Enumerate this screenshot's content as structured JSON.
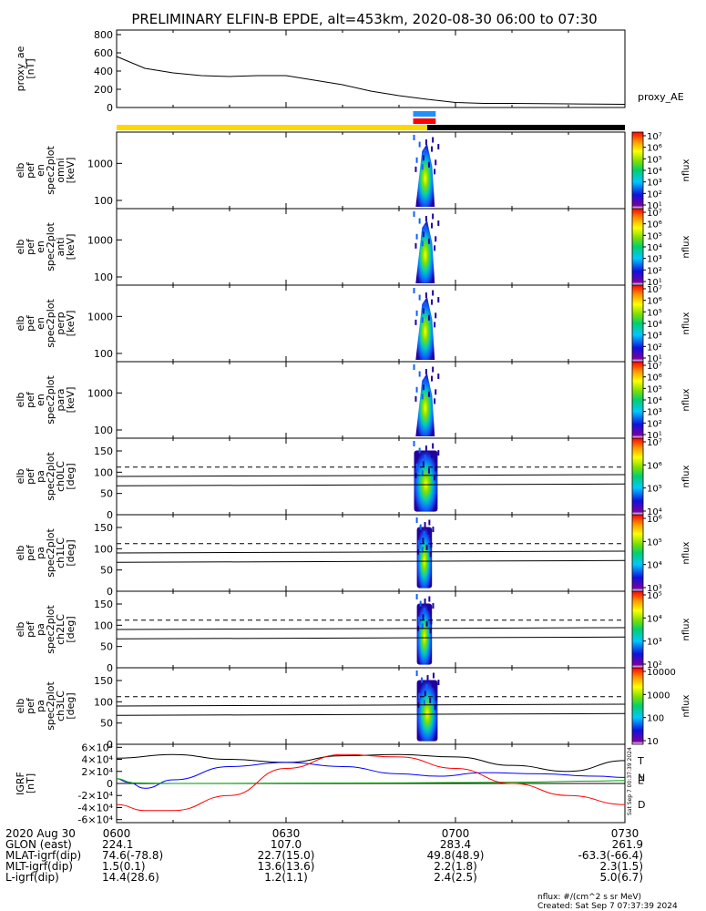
{
  "title": "PRELIMINARY ELFIN-B EPDE, alt=453km, 2020-08-30 06:00 to 07:30",
  "chart_data": [
    {
      "type": "line",
      "name": "proxy_ae",
      "ylabel": [
        "proxy_ae",
        "[nT]"
      ],
      "yticks": [
        0,
        200,
        400,
        600,
        800
      ],
      "ylim": [
        0,
        850
      ],
      "legend": "proxy_AE",
      "x_minutes": [
        0,
        5,
        10,
        15,
        20,
        25,
        30,
        35,
        40,
        45,
        50,
        55,
        60,
        65,
        70,
        75,
        80,
        85,
        90
      ],
      "values": [
        560,
        430,
        380,
        350,
        340,
        350,
        350,
        300,
        250,
        180,
        130,
        90,
        55,
        45,
        45,
        42,
        40,
        38,
        35
      ]
    },
    {
      "type": "bar",
      "name": "orbit-status-bar",
      "segments": [
        {
          "start_min": 0,
          "end_min": 55,
          "color": "#ffd700"
        },
        {
          "start_min": 55,
          "end_min": 90,
          "color": "#000000"
        }
      ],
      "markers": [
        {
          "start_min": 52.5,
          "end_min": 56.5,
          "color": "#1e90ff"
        },
        {
          "start_min": 52.5,
          "end_min": 56.5,
          "color": "#ff0000"
        }
      ]
    },
    {
      "type": "heatmap",
      "name": "en-omni",
      "ylabel": [
        "elb",
        "pef",
        "en",
        "spec2plot",
        "omni",
        "[keV]"
      ],
      "yticks": [
        "100",
        "1000"
      ],
      "ylog": true,
      "ylim_kev": [
        60,
        7000
      ],
      "colorbar": {
        "label": "nflux",
        "ticks": [
          "10⁷",
          "10⁶",
          "10⁵",
          "10⁴",
          "10³",
          "10²",
          "10¹"
        ]
      },
      "burst_minutes": [
        52.5,
        57
      ]
    },
    {
      "type": "heatmap",
      "name": "en-anti",
      "ylabel": [
        "elb",
        "pef",
        "en",
        "spec2plot",
        "anti",
        "[keV]"
      ],
      "yticks": [
        "100",
        "1000"
      ],
      "ylog": true,
      "ylim_kev": [
        60,
        7000
      ],
      "colorbar": {
        "label": "nflux",
        "ticks": [
          "10⁷",
          "10⁶",
          "10⁵",
          "10⁴",
          "10³",
          "10²",
          "10¹"
        ]
      },
      "burst_minutes": [
        52.5,
        57
      ]
    },
    {
      "type": "heatmap",
      "name": "en-perp",
      "ylabel": [
        "elb",
        "pef",
        "en",
        "spec2plot",
        "perp",
        "[keV]"
      ],
      "yticks": [
        "100",
        "1000"
      ],
      "ylog": true,
      "ylim_kev": [
        60,
        7000
      ],
      "colorbar": {
        "label": "nflux",
        "ticks": [
          "10⁷",
          "10⁶",
          "10⁵",
          "10⁴",
          "10³",
          "10²",
          "10¹"
        ]
      },
      "burst_minutes": [
        52.5,
        57
      ]
    },
    {
      "type": "heatmap",
      "name": "en-para",
      "ylabel": [
        "elb",
        "pef",
        "en",
        "spec2plot",
        "para",
        "[keV]"
      ],
      "yticks": [
        "100",
        "1000"
      ],
      "ylog": true,
      "ylim_kev": [
        60,
        7000
      ],
      "colorbar": {
        "label": "nflux",
        "ticks": [
          "10⁷",
          "10⁶",
          "10⁵",
          "10⁴",
          "10³",
          "10²",
          "10¹"
        ]
      },
      "burst_minutes": [
        52.5,
        57
      ]
    },
    {
      "type": "heatmap",
      "name": "pa-ch0LC",
      "ylabel": [
        "elb",
        "pef",
        "pa",
        "spec2plot",
        "ch0LC",
        "[deg]"
      ],
      "yticks": [
        "0",
        "50",
        "100",
        "150"
      ],
      "ylim": [
        0,
        180
      ],
      "colorbar": {
        "label": "nflux",
        "ticks": [
          "10⁷",
          "10⁶",
          "10⁵",
          "10⁴"
        ]
      },
      "lines": {
        "solid": [
          68,
          90
        ],
        "dashed": [
          112
        ]
      },
      "burst_minutes": [
        52.5,
        57
      ]
    },
    {
      "type": "heatmap",
      "name": "pa-ch1LC",
      "ylabel": [
        "elb",
        "pef",
        "pa",
        "spec2plot",
        "ch1LC",
        "[deg]"
      ],
      "yticks": [
        "0",
        "50",
        "100",
        "150"
      ],
      "ylim": [
        0,
        180
      ],
      "colorbar": {
        "label": "nflux",
        "ticks": [
          "10⁶",
          "10⁵",
          "10⁴",
          "10³"
        ]
      },
      "lines": {
        "solid": [
          68,
          90
        ],
        "dashed": [
          112
        ]
      },
      "burst_minutes": [
        53,
        56
      ]
    },
    {
      "type": "heatmap",
      "name": "pa-ch2LC",
      "ylabel": [
        "elb",
        "pef",
        "pa",
        "spec2plot",
        "ch2LC",
        "[deg]"
      ],
      "yticks": [
        "0",
        "50",
        "100",
        "150"
      ],
      "ylim": [
        0,
        180
      ],
      "colorbar": {
        "label": "nflux",
        "ticks": [
          "10⁵",
          "10⁴",
          "10³",
          "10²"
        ]
      },
      "lines": {
        "solid": [
          68,
          90
        ],
        "dashed": [
          112
        ]
      },
      "burst_minutes": [
        53,
        56
      ]
    },
    {
      "type": "heatmap",
      "name": "pa-ch3LC",
      "ylabel": [
        "elb",
        "pef",
        "pa",
        "spec2plot",
        "ch3LC",
        "[deg]"
      ],
      "yticks": [
        "0",
        "50",
        "100",
        "150"
      ],
      "ylim": [
        0,
        180
      ],
      "colorbar": {
        "label": "nflux",
        "ticks": [
          "10000",
          "1000",
          "100",
          "10"
        ]
      },
      "lines": {
        "solid": [
          68,
          90
        ],
        "dashed": [
          112
        ]
      },
      "burst_minutes": [
        53,
        57
      ]
    },
    {
      "type": "line",
      "name": "igrf",
      "ylabel": [
        "IGRF",
        "[nT]"
      ],
      "yticks": [
        "-6×10⁴",
        "-4×10⁴",
        "-2×10⁴",
        "0",
        "2×10⁴",
        "4×10⁴",
        "6×10⁴"
      ],
      "ylim": [
        -65000,
        65000
      ],
      "series": [
        {
          "name": "T",
          "color": "#000000",
          "x_minutes": [
            0,
            10,
            20,
            30,
            40,
            50,
            60,
            70,
            80,
            90
          ],
          "values": [
            42000,
            48000,
            40000,
            35000,
            46000,
            48000,
            44000,
            30000,
            20000,
            38000
          ]
        },
        {
          "name": "N",
          "color": "#0000ff",
          "x_minutes": [
            0,
            2,
            5,
            10,
            20,
            30,
            40,
            50,
            57,
            65,
            75,
            85,
            90
          ],
          "values": [
            8000,
            2000,
            -8000,
            6000,
            28000,
            35000,
            28000,
            16000,
            12000,
            18000,
            16000,
            12000,
            10000
          ]
        },
        {
          "name": "E",
          "color": "#00aa00",
          "x_minutes": [
            0,
            3,
            10,
            30,
            50,
            70,
            85,
            90
          ],
          "values": [
            8000,
            1000,
            0,
            500,
            1000,
            2000,
            4000,
            5000
          ]
        },
        {
          "name": "D",
          "color": "#ff0000",
          "x_minutes": [
            0,
            5,
            10,
            20,
            30,
            40,
            50,
            60,
            70,
            80,
            90
          ],
          "values": [
            -35000,
            -45000,
            -45000,
            -20000,
            25000,
            48000,
            44000,
            25000,
            0,
            -20000,
            -35000
          ]
        }
      ]
    }
  ],
  "xaxis": {
    "ticks": [
      "0600",
      "0630",
      "0700",
      "0730"
    ],
    "tick_minutes": [
      0,
      30,
      60,
      90
    ],
    "rows": [
      {
        "label": "2020 Aug 30",
        "values": [
          "",
          "",
          "",
          ""
        ]
      },
      {
        "label": "GLON (east)",
        "values": [
          "224.1",
          "107.0",
          "283.4",
          "261.9"
        ]
      },
      {
        "label": "MLAT-igrf(dip)",
        "values": [
          "74.6(-78.8)",
          "22.7(15.0)",
          "49.8(48.9)",
          "-63.3(-66.4)"
        ]
      },
      {
        "label": "MLT-igrf(dip)",
        "values": [
          "1.5(0.1)",
          "13.6(13.6)",
          "2.2(1.8)",
          "2.3(1.5)"
        ]
      },
      {
        "label": "L-igrf(dip)",
        "values": [
          "14.4(28.6)",
          "1.2(1.1)",
          "2.4(2.5)",
          "5.0(6.7)"
        ]
      }
    ]
  },
  "footer": {
    "units": "nflux: #/(cm^2 s sr MeV)",
    "created": "Created: Sat Sep  7 07:37:39 2024",
    "side_stamp": "Sat Sep  7 00:37:39 2024"
  },
  "colors": {
    "bar_yellow": "#ffd700",
    "bar_black": "#000000",
    "marker_blue": "#1e90ff",
    "marker_red": "#ff0000"
  }
}
